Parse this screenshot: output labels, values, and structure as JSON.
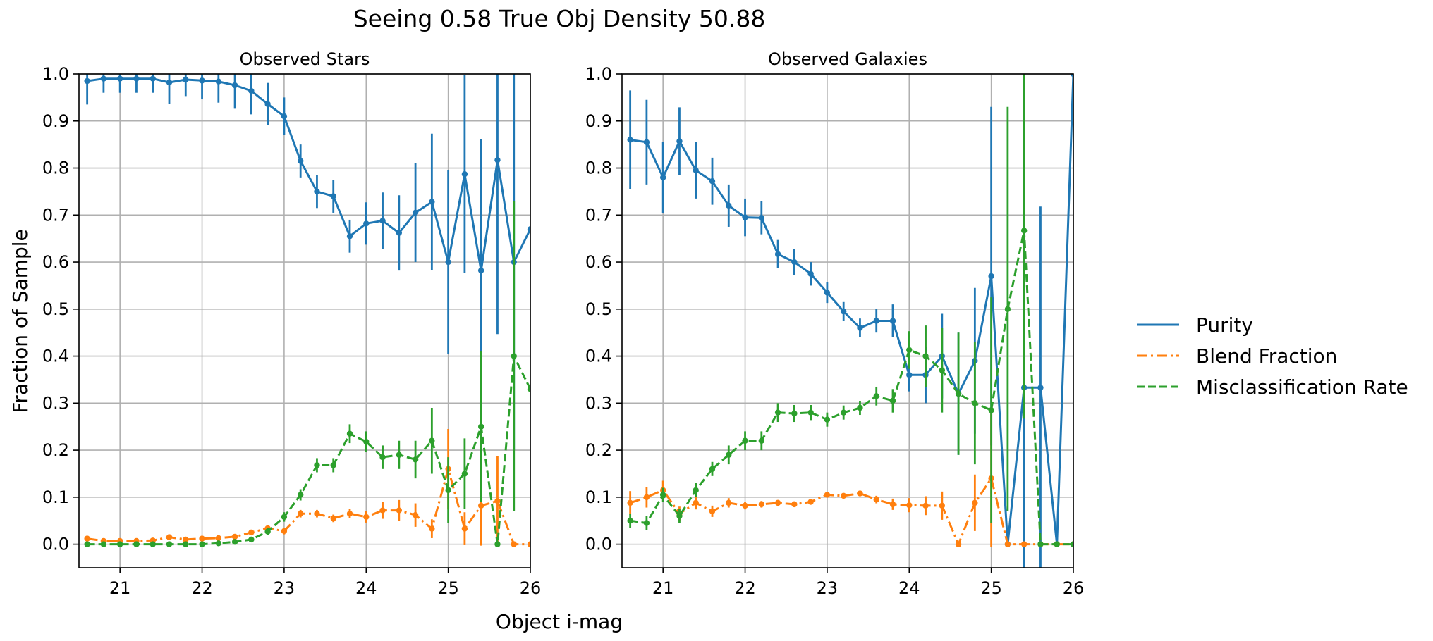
{
  "figure": {
    "suptitle": "Seeing 0.58 True Obj Density 50.88",
    "xlabel": "Object i-mag",
    "ylabel": "Fraction of Sample"
  },
  "legend": {
    "position": "right",
    "entries": [
      {
        "name": "Purity",
        "color": "#1f77b4",
        "style": "solid"
      },
      {
        "name": "Blend Fraction",
        "color": "#ff7f0e",
        "style": "dashdot"
      },
      {
        "name": "Misclassification Rate",
        "color": "#2ca02c",
        "style": "dashed"
      }
    ]
  },
  "chart_data": [
    {
      "type": "line",
      "title": "Observed Stars",
      "xlim": [
        20.5,
        26.0
      ],
      "ylim": [
        -0.05,
        1.0
      ],
      "xticks": [
        "21",
        "22",
        "23",
        "24",
        "25",
        "26"
      ],
      "yticks": [
        "0.0",
        "0.1",
        "0.2",
        "0.3",
        "0.4",
        "0.5",
        "0.6",
        "0.7",
        "0.8",
        "0.9",
        "1.0"
      ],
      "grid": true,
      "x": [
        20.6,
        20.8,
        21.0,
        21.2,
        21.4,
        21.6,
        21.8,
        22.0,
        22.2,
        22.4,
        22.6,
        22.8,
        23.0,
        23.2,
        23.4,
        23.6,
        23.8,
        24.0,
        24.2,
        24.4,
        24.6,
        24.8,
        25.0,
        25.2,
        25.4,
        25.6,
        25.8,
        26.0
      ],
      "series": [
        {
          "name": "Purity",
          "color": "#1f77b4",
          "style": "solid",
          "values": [
            0.985,
            0.99,
            0.99,
            0.99,
            0.99,
            0.982,
            0.988,
            0.986,
            0.984,
            0.976,
            0.964,
            0.936,
            0.91,
            0.815,
            0.75,
            0.74,
            0.655,
            0.682,
            0.688,
            0.662,
            0.705,
            0.728,
            0.6,
            0.787,
            0.582,
            0.817,
            0.6,
            0.67
          ],
          "err": [
            0.05,
            0.03,
            0.03,
            0.03,
            0.03,
            0.045,
            0.035,
            0.04,
            0.045,
            0.05,
            0.05,
            0.045,
            0.04,
            0.035,
            0.035,
            0.035,
            0.035,
            0.045,
            0.06,
            0.08,
            0.105,
            0.145,
            0.195,
            0.21,
            0.28,
            0.37,
            0.4,
            0
          ]
        },
        {
          "name": "Blend Fraction",
          "color": "#ff7f0e",
          "style": "dashdot",
          "values": [
            0.012,
            0.007,
            0.007,
            0.007,
            0.008,
            0.015,
            0.01,
            0.012,
            0.013,
            0.016,
            0.025,
            0.034,
            0.028,
            0.065,
            0.065,
            0.055,
            0.065,
            0.058,
            0.072,
            0.072,
            0.062,
            0.033,
            0.16,
            0.033,
            0.082,
            0.092,
            0.0,
            0.0
          ],
          "err": [
            0.004,
            0.004,
            0.004,
            0.004,
            0.004,
            0.004,
            0.004,
            0.004,
            0.005,
            0.005,
            0.006,
            0.006,
            0.007,
            0.008,
            0.008,
            0.008,
            0.01,
            0.012,
            0.018,
            0.022,
            0.025,
            0.02,
            0.085,
            0.035,
            0.085,
            0.095,
            0,
            0
          ]
        },
        {
          "name": "Misclassification Rate",
          "color": "#2ca02c",
          "style": "dashed",
          "values": [
            0.0,
            0.0,
            0.0,
            0.0,
            0.0,
            0.0,
            0.0,
            0.0,
            0.002,
            0.005,
            0.01,
            0.027,
            0.058,
            0.105,
            0.168,
            0.168,
            0.235,
            0.218,
            0.185,
            0.19,
            0.18,
            0.22,
            0.115,
            0.15,
            0.25,
            0.0,
            0.4,
            0.33
          ],
          "err": [
            0,
            0,
            0,
            0,
            0,
            0,
            0,
            0,
            0.002,
            0.004,
            0.006,
            0.008,
            0.01,
            0.012,
            0.015,
            0.015,
            0.02,
            0.022,
            0.025,
            0.03,
            0.04,
            0.07,
            0.07,
            0.075,
            0.16,
            0,
            0.33,
            0
          ]
        }
      ]
    },
    {
      "type": "line",
      "title": "Observed Galaxies",
      "xlim": [
        20.5,
        26.0
      ],
      "ylim": [
        -0.05,
        1.0
      ],
      "xticks": [
        "21",
        "22",
        "23",
        "24",
        "25",
        "26"
      ],
      "yticks": [
        "0.0",
        "0.1",
        "0.2",
        "0.3",
        "0.4",
        "0.5",
        "0.6",
        "0.7",
        "0.8",
        "0.9",
        "1.0"
      ],
      "grid": true,
      "x": [
        20.6,
        20.8,
        21.0,
        21.2,
        21.4,
        21.6,
        21.8,
        22.0,
        22.2,
        22.4,
        22.6,
        22.8,
        23.0,
        23.2,
        23.4,
        23.6,
        23.8,
        24.0,
        24.2,
        24.4,
        24.6,
        24.8,
        25.0,
        25.2,
        25.4,
        25.6,
        25.8,
        26.0
      ],
      "series": [
        {
          "name": "Purity",
          "color": "#1f77b4",
          "style": "solid",
          "values": [
            0.86,
            0.855,
            0.78,
            0.857,
            0.795,
            0.772,
            0.72,
            0.695,
            0.694,
            0.617,
            0.6,
            0.575,
            0.535,
            0.495,
            0.46,
            0.475,
            0.475,
            0.36,
            0.36,
            0.4,
            0.32,
            0.39,
            0.57,
            0.0,
            0.333,
            0.333,
            0.0,
            1.0
          ],
          "err": [
            0.105,
            0.09,
            0.075,
            0.072,
            0.06,
            0.05,
            0.045,
            0.04,
            0.035,
            0.03,
            0.028,
            0.025,
            0.022,
            0.02,
            0.02,
            0.025,
            0.035,
            0.035,
            0.06,
            0.09,
            0.13,
            0.155,
            0.36,
            0,
            0.4,
            0.385,
            0,
            0
          ]
        },
        {
          "name": "Blend Fraction",
          "color": "#ff7f0e",
          "style": "dashdot",
          "values": [
            0.088,
            0.1,
            0.115,
            0.065,
            0.088,
            0.07,
            0.088,
            0.082,
            0.085,
            0.088,
            0.085,
            0.09,
            0.105,
            0.103,
            0.108,
            0.095,
            0.085,
            0.083,
            0.082,
            0.082,
            0.0,
            0.088,
            0.14,
            0.0,
            0.0,
            0.0,
            0.0,
            0.0
          ],
          "err": [
            0.025,
            0.022,
            0.02,
            0.015,
            0.014,
            0.012,
            0.01,
            0.008,
            0.007,
            0.006,
            0.006,
            0.005,
            0.005,
            0.005,
            0.006,
            0.008,
            0.012,
            0.015,
            0.02,
            0.03,
            0,
            0.06,
            0.145,
            0,
            0,
            0,
            0,
            0
          ]
        },
        {
          "name": "Misclassification Rate",
          "color": "#2ca02c",
          "style": "dashed",
          "values": [
            0.05,
            0.045,
            0.105,
            0.06,
            0.115,
            0.16,
            0.19,
            0.22,
            0.22,
            0.28,
            0.278,
            0.28,
            0.265,
            0.28,
            0.29,
            0.315,
            0.305,
            0.413,
            0.4,
            0.37,
            0.32,
            0.3,
            0.285,
            0.5,
            0.667,
            0.0,
            0.0,
            0.0
          ],
          "err": [
            0.015,
            0.015,
            0.015,
            0.015,
            0.015,
            0.015,
            0.02,
            0.02,
            0.02,
            0.02,
            0.018,
            0.016,
            0.015,
            0.015,
            0.015,
            0.02,
            0.025,
            0.04,
            0.065,
            0.09,
            0.13,
            0.13,
            0.24,
            0.43,
            0.4,
            0,
            0,
            0
          ]
        }
      ]
    }
  ]
}
